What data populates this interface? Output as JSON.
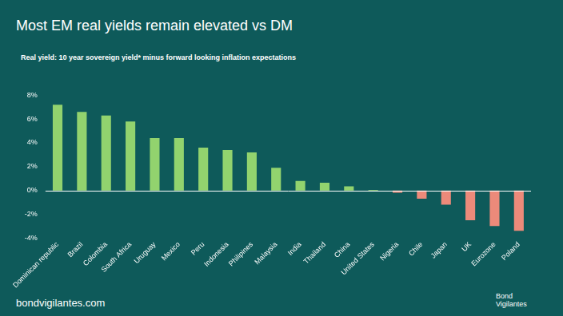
{
  "chart_data": {
    "type": "bar",
    "title": "Most EM real yields remain elevated vs DM",
    "subtitle": "Real yield: 10 year sovereign yield* minus forward looking inflation expectations",
    "categories": [
      "Dominican republic",
      "Brazil",
      "Colombia",
      "South Africa",
      "Uruguay",
      "Mexico",
      "Peru",
      "Indonesia",
      "Philipines",
      "Malaysia",
      "India",
      "Thailand",
      "China",
      "United States",
      "Nigeria",
      "Chile",
      "Japan",
      "UK",
      "Eurozone",
      "Poland"
    ],
    "values": [
      7.2,
      6.6,
      6.3,
      5.8,
      4.4,
      4.4,
      3.6,
      3.4,
      3.2,
      1.9,
      0.8,
      0.65,
      0.35,
      0.05,
      -0.2,
      -0.7,
      -1.2,
      -2.5,
      -3.0,
      -3.4
    ],
    "colors": [
      "#92d36e",
      "#92d36e",
      "#92d36e",
      "#92d36e",
      "#92d36e",
      "#92d36e",
      "#92d36e",
      "#92d36e",
      "#92d36e",
      "#92d36e",
      "#92d36e",
      "#92d36e",
      "#92d36e",
      "#92d36e",
      "#ec8a7a",
      "#ec8a7a",
      "#ec8a7a",
      "#ec8a7a",
      "#ec8a7a",
      "#ec8a7a"
    ],
    "ylim": [
      -4,
      8
    ],
    "yticks": [
      {
        "value": -4,
        "label": "-4%"
      },
      {
        "value": -2,
        "label": "-2%"
      },
      {
        "value": 0,
        "label": "0%"
      },
      {
        "value": 2,
        "label": "2%"
      },
      {
        "value": 4,
        "label": "4%"
      },
      {
        "value": 6,
        "label": "6%"
      },
      {
        "value": 8,
        "label": "8%"
      }
    ],
    "grid": false
  },
  "footer": {
    "source": "bondvigilantes.com",
    "logo": "Bond Vigilantes"
  }
}
